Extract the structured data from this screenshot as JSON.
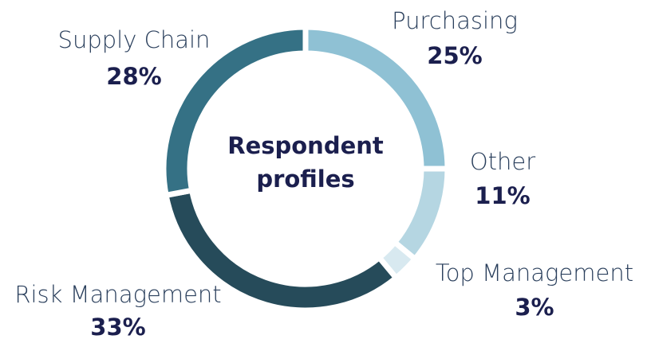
{
  "chart_data": {
    "type": "donut",
    "title": "Respondent profiles",
    "categories": [
      "Purchasing",
      "Other",
      "Top Management",
      "Risk Management",
      "Supply Chain"
    ],
    "values": [
      25,
      11,
      3,
      33,
      28
    ],
    "value_labels": [
      "25%",
      "11%",
      "3%",
      "33%",
      "28%"
    ],
    "colors": [
      "#8fc1d4",
      "#b5d6e2",
      "#d8e9f0",
      "#264b5a",
      "#357185"
    ]
  }
}
